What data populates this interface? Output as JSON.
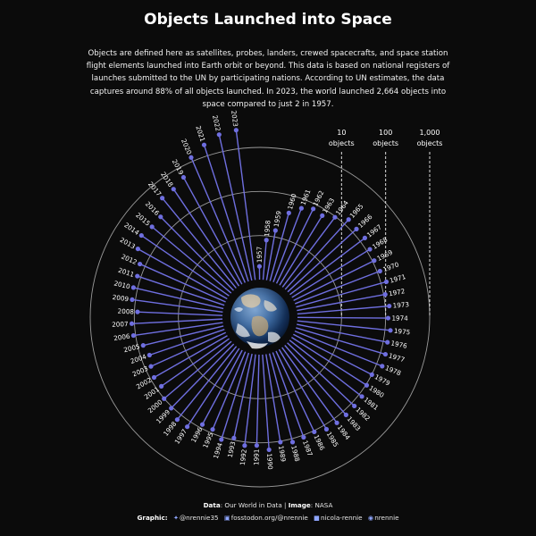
{
  "title": "Objects Launched into Space",
  "subtitle": "Objects are defined here as satellites, probes, landers, crewed spacecrafts, and space station flight elements launched into Earth orbit or beyond. This data is based on national registers of launches submitted to the UN by participating nations. According to UN estimates, the data captures around 88% of all objects launched. In 2023, the world launched 2,664 objects into space compared to just 2 in 1957.",
  "footer": {
    "data_label": "Data",
    "data_value": ": Our World in Data | ",
    "image_label": "Image",
    "image_value": ": NASA",
    "graphic_label": "Graphic",
    "twitter": "@nrennie35",
    "mastodon": "fosstodon.org/@nrennie",
    "linkedin": "nicola-rennie",
    "github": "nrennie"
  },
  "colors": {
    "background": "#0b0b0b",
    "series": "#6f6fe0",
    "ring": "#9a9a9a",
    "text": "#ffffff"
  },
  "chart_data": {
    "type": "radial-lollipop",
    "scale": "log",
    "series_name": "Objects launched",
    "reference_rings": [
      {
        "value": 10,
        "label": "10 objects"
      },
      {
        "value": 100,
        "label": "100 objects"
      },
      {
        "value": 1000,
        "label": "1,000 objects"
      }
    ],
    "years": [
      "1957",
      "1958",
      "1959",
      "1960",
      "1961",
      "1962",
      "1963",
      "1964",
      "1965",
      "1966",
      "1967",
      "1968",
      "1969",
      "1970",
      "1971",
      "1972",
      "1973",
      "1974",
      "1975",
      "1976",
      "1977",
      "1978",
      "1979",
      "1980",
      "1981",
      "1982",
      "1983",
      "1984",
      "1985",
      "1986",
      "1987",
      "1988",
      "1989",
      "1990",
      "1991",
      "1992",
      "1993",
      "1994",
      "1995",
      "1996",
      "1997",
      "1998",
      "1999",
      "2000",
      "2001",
      "2002",
      "2003",
      "2004",
      "2005",
      "2006",
      "2007",
      "2008",
      "2009",
      "2010",
      "2011",
      "2012",
      "2013",
      "2014",
      "2015",
      "2016",
      "2017",
      "2018",
      "2019",
      "2020",
      "2021",
      "2022",
      "2023"
    ],
    "values": [
      2,
      8,
      14,
      40,
      62,
      77,
      71,
      96,
      138,
      130,
      135,
      120,
      110,
      116,
      134,
      109,
      124,
      114,
      133,
      125,
      131,
      137,
      101,
      105,
      120,
      123,
      127,
      130,
      128,
      107,
      112,
      120,
      105,
      146,
      115,
      121,
      90,
      115,
      82,
      82,
      136,
      137,
      108,
      101,
      76,
      82,
      73,
      63,
      75,
      112,
      115,
      85,
      119,
      125,
      121,
      134,
      210,
      260,
      220,
      225,
      440,
      450,
      580,
      1240,
      1810,
      2470,
      2664
    ]
  }
}
